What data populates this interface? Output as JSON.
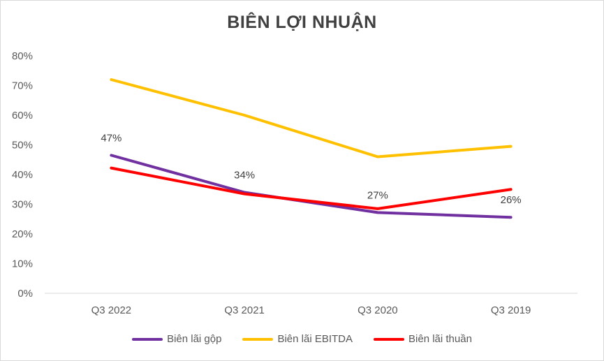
{
  "chart_data": {
    "type": "line",
    "title": "BIÊN LỢI NHUẬN",
    "categories": [
      "Q3 2022",
      "Q3 2021",
      "Q3 2020",
      "Q3 2019"
    ],
    "ylim": [
      0,
      80
    ],
    "yticks": [
      "0%",
      "10%",
      "20%",
      "30%",
      "40%",
      "50%",
      "60%",
      "70%",
      "80%"
    ],
    "grid": false,
    "legend_position": "bottom",
    "series": [
      {
        "name": "Biên lãi gộp",
        "color": "#7030a0",
        "values": [
          46.5,
          34,
          27.2,
          25.6
        ]
      },
      {
        "name": "Biên lãi EBITDA",
        "color": "#ffc000",
        "values": [
          72,
          60,
          46,
          49.5
        ]
      },
      {
        "name": "Biên lãi thuần",
        "color": "#ff0000",
        "values": [
          42.2,
          33.5,
          28.5,
          35
        ]
      }
    ],
    "data_labels": [
      "47%",
      "34%",
      "27%",
      "26%"
    ]
  }
}
